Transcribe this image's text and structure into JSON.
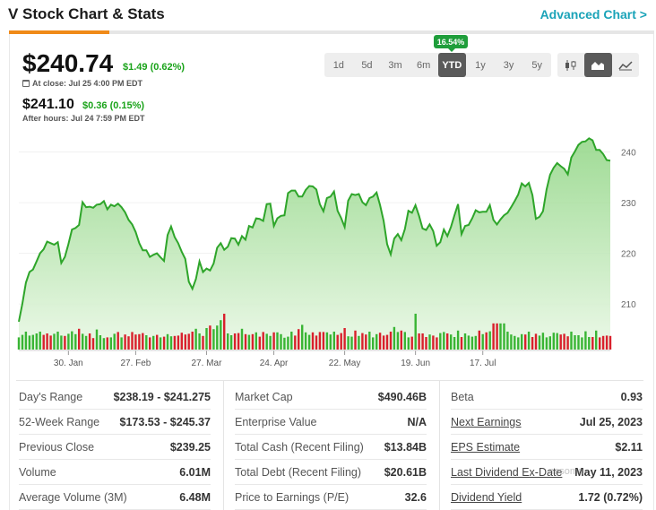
{
  "header": {
    "title": "V Stock Chart & Stats",
    "advanced_link": "Advanced Chart >"
  },
  "quote": {
    "price": "$240.74",
    "change": "$1.49 (0.62%)",
    "close_label": "At close: Jul 25 4:00 PM EDT",
    "after_price": "$241.10",
    "after_change": "$0.36 (0.15%)",
    "after_label": "After hours: Jul 24 7:59 PM EDT"
  },
  "ranges": [
    "1d",
    "5d",
    "3m",
    "6m",
    "YTD",
    "1y",
    "3y",
    "5y"
  ],
  "active_range": "YTD",
  "ytd_badge": "16.54%",
  "chart_types": [
    "candlestick-icon",
    "area-chart-icon",
    "line-chart-icon"
  ],
  "active_chart_type": "area-chart-icon",
  "colors": {
    "line": "#2ea52a",
    "up_bar": "#39b534",
    "down_bar": "#d9202c",
    "accent": "#f08a18",
    "link": "#1aa3b8"
  },
  "chart_data": {
    "type": "area",
    "title": "",
    "xlabel": "",
    "ylabel": "",
    "ylim": [
      201,
      244
    ],
    "y_ticks": [
      210,
      220,
      230,
      240
    ],
    "x_ticks": [
      "30. Jan",
      "27. Feb",
      "27. Mar",
      "24. Apr",
      "22. May",
      "19. Jun",
      "17. Jul"
    ],
    "x_tick_index": [
      14,
      33,
      53,
      72,
      92,
      112,
      131
    ],
    "series": [
      {
        "values": [
          206.5,
          210.1,
          214.2,
          216.3,
          216.8,
          218.4,
          220.0,
          220.8,
          222.3,
          222.0,
          221.7,
          222.2,
          218.1,
          219.3,
          221.8,
          224.7,
          225.0,
          225.6,
          230.1,
          229.1,
          229.2,
          229.0,
          229.6,
          229.7,
          230.3,
          228.7,
          229.6,
          229.3,
          229.8,
          229.1,
          228.1,
          226.6,
          225.7,
          224.2,
          222.0,
          220.6,
          220.6,
          219.3,
          219.7,
          220.0,
          219.2,
          218.5,
          223.6,
          225.3,
          223.2,
          222.0,
          220.3,
          218.9,
          214.4,
          213.0,
          214.9,
          218.4,
          216.3,
          217.0,
          216.6,
          218.0,
          221.1,
          222.0,
          220.7,
          221.3,
          223.0,
          222.9,
          221.7,
          223.4,
          222.7,
          225.4,
          225.1,
          226.9,
          226.8,
          226.4,
          229.7,
          229.8,
          225.4,
          226.9,
          227.4,
          227.5,
          231.9,
          232.4,
          232.4,
          231.2,
          231.2,
          232.5,
          233.3,
          233.2,
          232.6,
          229.7,
          228.3,
          230.9,
          231.2,
          232.2,
          228.4,
          227.0,
          225.2,
          230.4,
          231.7,
          231.5,
          231.7,
          230.1,
          229.5,
          230.9,
          231.2,
          232.0,
          229.5,
          226.4,
          221.8,
          219.8,
          222.9,
          223.8,
          222.6,
          224.8,
          228.4,
          228.0,
          229.5,
          227.4,
          224.9,
          224.6,
          225.7,
          224.4,
          221.5,
          222.2,
          224.7,
          223.4,
          225.2,
          227.5,
          229.7,
          223.8,
          225.4,
          225.6,
          226.9,
          228.5,
          228.1,
          228.2,
          228.2,
          229.5,
          226.6,
          225.7,
          226.7,
          227.5,
          228.0,
          229.1,
          230.3,
          231.6,
          233.8,
          233.2,
          233.9,
          231.5,
          226.8,
          227.2,
          228.3,
          232.6,
          235.5,
          236.9,
          237.8,
          237.2,
          236.7,
          235.6,
          238.9,
          240.1,
          241.4,
          242.0,
          242.1,
          242.7,
          242.3,
          240.4,
          240.4,
          239.6,
          238.4,
          238.3
        ],
        "volume_up": [
          true,
          true,
          true,
          true,
          true,
          true,
          true,
          false,
          false,
          false,
          true,
          true,
          true,
          false,
          true,
          true,
          true,
          false,
          true,
          true,
          false,
          false,
          true,
          true,
          true,
          false,
          true,
          true,
          false,
          true,
          false,
          false,
          false,
          false,
          false,
          false,
          true,
          false,
          true,
          false,
          true,
          false,
          true,
          true,
          false,
          false,
          false,
          false,
          false,
          false,
          true,
          true,
          false,
          true,
          false,
          true,
          true,
          true,
          false,
          true,
          true,
          false,
          false,
          true,
          false,
          true,
          false,
          true,
          false,
          false,
          true,
          true,
          false,
          true,
          true,
          true,
          true,
          true,
          false,
          false,
          true,
          true,
          true,
          false,
          false,
          false,
          false,
          true,
          true,
          true,
          false,
          false,
          false,
          true,
          true,
          false,
          true,
          false,
          false,
          true,
          true,
          true,
          false,
          false,
          false,
          false,
          true,
          true,
          false,
          true,
          true,
          false,
          true,
          false,
          false,
          false,
          true,
          false,
          false,
          true,
          true,
          false,
          true,
          true,
          true,
          false,
          true,
          true,
          true,
          true,
          false,
          true,
          false,
          true,
          false,
          false,
          true,
          true,
          true,
          true,
          true,
          true,
          true,
          false,
          true,
          false,
          false,
          true,
          true,
          true,
          true,
          true,
          true,
          false,
          false,
          false,
          true,
          true,
          true,
          true,
          true,
          true,
          false,
          true,
          false,
          false,
          false,
          false
        ],
        "volume": [
          0.34,
          0.41,
          0.5,
          0.39,
          0.41,
          0.45,
          0.5,
          0.41,
          0.45,
          0.39,
          0.44,
          0.5,
          0.39,
          0.38,
          0.44,
          0.51,
          0.43,
          0.58,
          0.44,
          0.38,
          0.45,
          0.32,
          0.56,
          0.4,
          0.32,
          0.34,
          0.34,
          0.44,
          0.49,
          0.34,
          0.42,
          0.37,
          0.49,
          0.42,
          0.43,
          0.46,
          0.4,
          0.34,
          0.38,
          0.41,
          0.34,
          0.36,
          0.43,
          0.37,
          0.38,
          0.39,
          0.47,
          0.42,
          0.44,
          0.5,
          0.58,
          0.45,
          0.38,
          0.6,
          0.67,
          0.57,
          0.67,
          0.82,
          1.0,
          0.45,
          0.4,
          0.45,
          0.46,
          0.58,
          0.43,
          0.41,
          0.43,
          0.48,
          0.36,
          0.49,
          0.44,
          0.38,
          0.48,
          0.48,
          0.43,
          0.33,
          0.36,
          0.5,
          0.39,
          0.57,
          0.69,
          0.48,
          0.41,
          0.48,
          0.39,
          0.49,
          0.49,
          0.48,
          0.42,
          0.5,
          0.41,
          0.46,
          0.6,
          0.37,
          0.36,
          0.53,
          0.38,
          0.46,
          0.42,
          0.5,
          0.34,
          0.43,
          0.47,
          0.39,
          0.41,
          0.5,
          0.63,
          0.49,
          0.53,
          0.49,
          0.34,
          0.36,
          1.0,
          0.45,
          0.45,
          0.35,
          0.42,
          0.39,
          0.34,
          0.46,
          0.49,
          0.45,
          0.42,
          0.35,
          0.53,
          0.35,
          0.45,
          0.39,
          0.36,
          0.38,
          0.53,
          0.43,
          0.48,
          0.51,
          0.73,
          0.73,
          0.73,
          0.73,
          0.5,
          0.42,
          0.38,
          0.34,
          0.43,
          0.42,
          0.5,
          0.35,
          0.44,
          0.39,
          0.47,
          0.34,
          0.37,
          0.47,
          0.46,
          0.42,
          0.44,
          0.37,
          0.5,
          0.4,
          0.4,
          0.34,
          0.51,
          0.35,
          0.35,
          0.53,
          0.34,
          0.38,
          0.39,
          0.38
        ]
      }
    ]
  },
  "stats": {
    "col1": [
      {
        "label": "Day's Range",
        "value": "$238.19 - $241.275"
      },
      {
        "label": "52-Week Range",
        "value": "$173.53 - $245.37"
      },
      {
        "label": "Previous Close",
        "value": "$239.25"
      },
      {
        "label": "Volume",
        "value": "6.01M"
      },
      {
        "label": "Average Volume (3M)",
        "value": "6.48M"
      }
    ],
    "col2": [
      {
        "label": "Market Cap",
        "value": "$490.46B"
      },
      {
        "label": "Enterprise Value",
        "value": "N/A"
      },
      {
        "label": "Total Cash (Recent Filing)",
        "value": "$13.84B"
      },
      {
        "label": "Total Debt (Recent Filing)",
        "value": "$20.61B"
      },
      {
        "label": "Price to Earnings (P/E)",
        "value": "32.6"
      }
    ],
    "col3": [
      {
        "label": "Beta",
        "value": "0.93"
      },
      {
        "label": "Next Earnings",
        "value": "Jul 25, 2023"
      },
      {
        "label": "EPS Estimate",
        "value": "$2.11"
      },
      {
        "label": "Last Dividend Ex-Date",
        "value": "May 11, 2023"
      },
      {
        "label": "Dividend Yield",
        "value": "1.72 (0.72%)"
      }
    ]
  },
  "watermark": "nesoma"
}
